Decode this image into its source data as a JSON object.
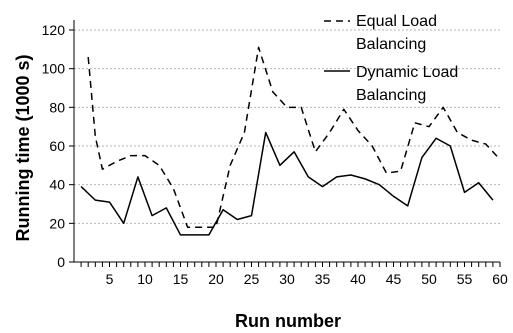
{
  "chart_data": {
    "type": "line",
    "xlabel": "Run number",
    "ylabel": "Running time (1000 s)",
    "xlim": [
      0,
      60
    ],
    "ylim": [
      0,
      120
    ],
    "yticks": [
      0,
      20,
      40,
      60,
      80,
      100,
      120
    ],
    "xticks": [
      5,
      10,
      15,
      20,
      25,
      30,
      35,
      40,
      45,
      50,
      55,
      60
    ],
    "grid": "horizontal",
    "legend_position": "top-right",
    "x": [
      1,
      2,
      3,
      4,
      5,
      6,
      7,
      8,
      9,
      10,
      11,
      12,
      13,
      14,
      15,
      16,
      17,
      18,
      19,
      20,
      21,
      22,
      23,
      24,
      25,
      26,
      27,
      28,
      29,
      30,
      31,
      32,
      33,
      34,
      35,
      36,
      37,
      38,
      39,
      40,
      41,
      42,
      43,
      44,
      45,
      46,
      47,
      48,
      49,
      50,
      51,
      52,
      53,
      54,
      55,
      56,
      57,
      58,
      59,
      60
    ],
    "series": [
      {
        "name": "Equal Load Balancing",
        "style": "dashed",
        "color": "#000000",
        "x": [
          2,
          3,
          4,
          5,
          6,
          8,
          10,
          12,
          14,
          16,
          18,
          20,
          22,
          24,
          26,
          28,
          30,
          32,
          34,
          36,
          38,
          40,
          42,
          44,
          46,
          48,
          50,
          52,
          54,
          56,
          58,
          60
        ],
        "values": [
          106,
          65,
          48,
          50,
          52,
          55,
          55,
          50,
          38,
          18,
          18,
          18,
          50,
          67,
          111,
          88,
          80,
          80,
          57,
          67,
          79,
          68,
          60,
          46,
          47,
          72,
          70,
          80,
          67,
          63,
          61,
          53
        ]
      },
      {
        "name": "Dynamic Load Balancing",
        "style": "solid",
        "color": "#000000",
        "x": [
          1,
          3,
          5,
          7,
          9,
          11,
          13,
          15,
          17,
          19,
          21,
          23,
          25,
          27,
          29,
          31,
          33,
          35,
          37,
          39,
          41,
          43,
          45,
          47,
          49,
          51,
          53,
          55,
          57,
          59
        ],
        "values": [
          39,
          32,
          31,
          20,
          44,
          24,
          28,
          14,
          14,
          14,
          27,
          22,
          24,
          67,
          50,
          57,
          44,
          39,
          44,
          45,
          43,
          40,
          34,
          29,
          54,
          64,
          60,
          36,
          41,
          32
        ]
      }
    ]
  }
}
